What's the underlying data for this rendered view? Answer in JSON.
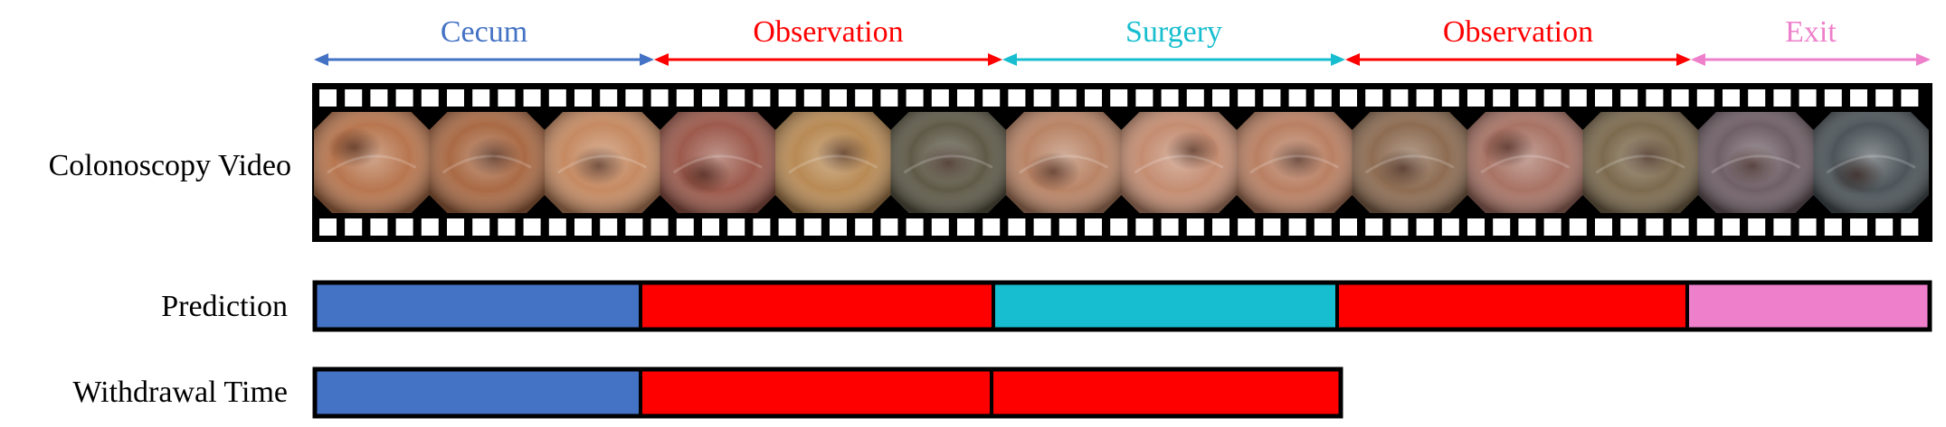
{
  "row_labels": {
    "video": "Colonoscopy Video",
    "prediction": "Prediction",
    "withdrawal": "Withdrawal Time"
  },
  "phases": [
    {
      "label": "Cecum",
      "color": "#4472c4"
    },
    {
      "label": "Observation",
      "color": "#ff0000"
    },
    {
      "label": "Surgery",
      "color": "#17becf"
    },
    {
      "label": "Observation",
      "color": "#ff0000"
    },
    {
      "label": "Exit",
      "color": "#ee7fcb"
    }
  ],
  "withdrawal_segments": [
    {
      "color": "#4472c4"
    },
    {
      "color": "#ff0000"
    },
    {
      "color": "#ff0000"
    }
  ],
  "frames": [
    {
      "tone": "#b7764f"
    },
    {
      "tone": "#a96a45"
    },
    {
      "tone": "#c58a62"
    },
    {
      "tone": "#9c5a4c"
    },
    {
      "tone": "#b88a55"
    },
    {
      "tone": "#5f5a48"
    },
    {
      "tone": "#b98466"
    },
    {
      "tone": "#c48d72"
    },
    {
      "tone": "#b98063"
    },
    {
      "tone": "#8d6c52"
    },
    {
      "tone": "#a87365"
    },
    {
      "tone": "#7c6a4e"
    },
    {
      "tone": "#6f5f66"
    },
    {
      "tone": "#4d555a"
    }
  ]
}
